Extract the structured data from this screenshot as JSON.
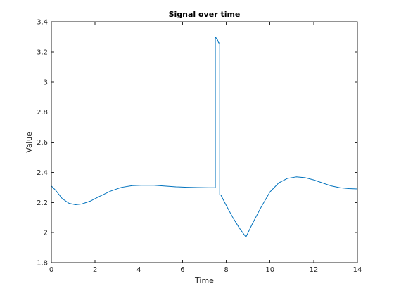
{
  "chart_data": {
    "type": "line",
    "title": "Signal over time",
    "xlabel": "Time",
    "ylabel": "Value",
    "xlim": [
      0,
      14
    ],
    "ylim": [
      1.8,
      3.4
    ],
    "xticks": [
      0,
      2,
      4,
      6,
      8,
      10,
      12,
      14
    ],
    "yticks": [
      1.8,
      2,
      2.2,
      2.4,
      2.6,
      2.8,
      3,
      3.2,
      3.4
    ],
    "grid": false,
    "box": true,
    "series": [
      {
        "color": "#0072BD",
        "x": [
          0,
          0.2,
          0.5,
          0.8,
          1.1,
          1.4,
          1.8,
          2.2,
          2.7,
          3.2,
          3.7,
          4.2,
          4.7,
          5.2,
          5.7,
          6.2,
          6.7,
          7.2,
          7.5,
          7.5,
          7.6,
          7.65,
          7.7,
          7.7,
          7.75,
          8.0,
          8.3,
          8.6,
          8.9,
          9.2,
          9.6,
          10.0,
          10.4,
          10.8,
          11.2,
          11.6,
          12.0,
          12.4,
          12.8,
          13.2,
          13.6,
          14.0
        ],
        "y": [
          2.31,
          2.28,
          2.225,
          2.195,
          2.185,
          2.19,
          2.21,
          2.24,
          2.275,
          2.3,
          2.312,
          2.315,
          2.314,
          2.309,
          2.304,
          2.301,
          2.299,
          2.298,
          2.298,
          3.3,
          3.28,
          3.26,
          3.26,
          2.25,
          2.25,
          2.18,
          2.1,
          2.03,
          1.97,
          2.06,
          2.17,
          2.27,
          2.33,
          2.36,
          2.37,
          2.365,
          2.35,
          2.33,
          2.31,
          2.298,
          2.292,
          2.29
        ]
      }
    ]
  }
}
